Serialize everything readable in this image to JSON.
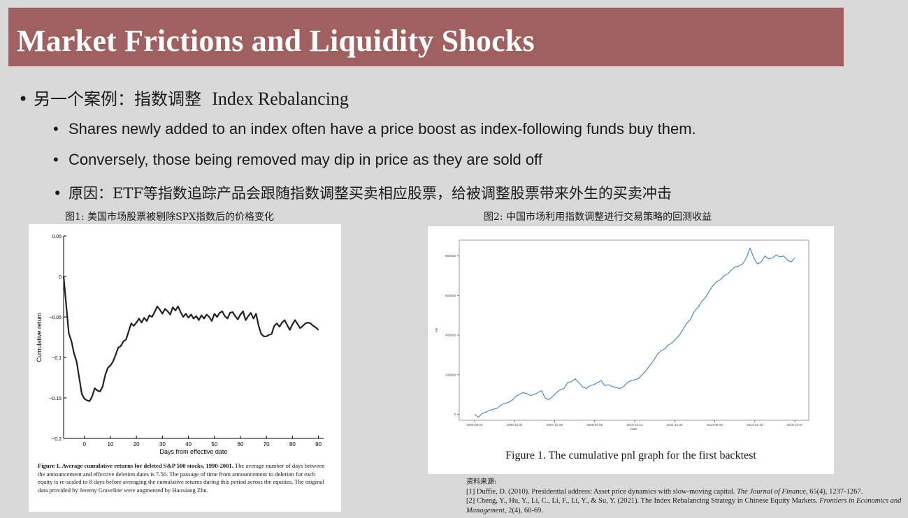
{
  "slide": {
    "title": "Market Frictions and Liquidity Shocks",
    "bullet1_cn": "另一个案例：指数调整",
    "bullet1_en": "Index Rebalancing",
    "sub1": "Shares newly added to an index often have a price boost as index-following funds buy them.",
    "sub2": "Conversely, those being removed may dip in price as they are sold off",
    "sub3": "原因：ETF等指数追踪产品会跟随指数调整买卖相应股票，给被调整股票带来外生的买卖冲击",
    "bullet_glyph": "•"
  },
  "figure1": {
    "caption": "图1: 美国市场股票被剔除SPX指数后的价格变化",
    "note_bold": "Figure 1.  Average cumulative returns for deleted S&P 500 stocks, 1990-2001.",
    "note_text": " The average number of days between the announcement and effective deletion dates is 7.56. The passage of time from announcement to deletion for each equity is re-scaled to 8 days before averaging the cumulative returns during this period across the equities. The original data provided by Jeremy Graveline were augmented by Haoxiang Zhu.",
    "chart_data": {
      "type": "line",
      "xlabel": "Days from effective date",
      "ylabel": "Cumulative return",
      "xlim": [
        -8,
        92
      ],
      "ylim": [
        -0.2,
        0.05
      ],
      "x_ticks": [
        "0",
        "10",
        "20",
        "30",
        "40",
        "50",
        "60",
        "70",
        "80",
        "90"
      ],
      "x_tick_values": [
        0,
        10,
        20,
        30,
        40,
        50,
        60,
        70,
        80,
        90
      ],
      "y_ticks": [
        "0.05",
        "0",
        "−0.05",
        "−0.1",
        "−0.15",
        "−0.2"
      ],
      "y_tick_values": [
        0.05,
        0,
        -0.05,
        -0.1,
        -0.15,
        -0.2
      ],
      "series": [
        {
          "x": [
            -8,
            -7,
            -6,
            -5,
            -4,
            -3,
            -2,
            -1,
            0,
            1,
            2,
            3,
            4,
            5,
            6,
            7,
            8,
            9,
            10,
            11,
            12,
            13,
            14,
            15,
            16,
            17,
            18,
            19,
            20,
            21,
            22,
            23,
            24,
            25,
            26,
            27,
            28,
            29,
            30,
            31,
            32,
            33,
            34,
            35,
            36,
            37,
            38,
            39,
            40,
            41,
            42,
            43,
            44,
            45,
            46,
            47,
            48,
            49,
            50,
            51,
            52,
            53,
            54,
            55,
            56,
            57,
            58,
            59,
            60,
            61,
            62,
            63,
            64,
            65,
            66,
            67,
            68,
            69,
            70,
            71,
            72,
            73,
            74,
            75,
            76,
            77,
            78,
            79,
            80,
            81,
            82,
            83,
            84,
            85,
            86,
            87,
            88,
            89,
            90
          ],
          "y": [
            0,
            -0.035,
            -0.07,
            -0.08,
            -0.095,
            -0.105,
            -0.125,
            -0.145,
            -0.151,
            -0.153,
            -0.154,
            -0.148,
            -0.138,
            -0.141,
            -0.142,
            -0.136,
            -0.122,
            -0.113,
            -0.11,
            -0.105,
            -0.097,
            -0.088,
            -0.086,
            -0.08,
            -0.078,
            -0.068,
            -0.058,
            -0.061,
            -0.057,
            -0.052,
            -0.057,
            -0.051,
            -0.055,
            -0.048,
            -0.05,
            -0.044,
            -0.037,
            -0.041,
            -0.046,
            -0.04,
            -0.043,
            -0.047,
            -0.038,
            -0.042,
            -0.037,
            -0.044,
            -0.05,
            -0.046,
            -0.051,
            -0.047,
            -0.052,
            -0.049,
            -0.054,
            -0.048,
            -0.052,
            -0.047,
            -0.05,
            -0.055,
            -0.046,
            -0.05,
            -0.045,
            -0.043,
            -0.049,
            -0.052,
            -0.045,
            -0.044,
            -0.049,
            -0.053,
            -0.047,
            -0.043,
            -0.054,
            -0.049,
            -0.045,
            -0.052,
            -0.046,
            -0.061,
            -0.071,
            -0.074,
            -0.074,
            -0.072,
            -0.071,
            -0.061,
            -0.058,
            -0.062,
            -0.057,
            -0.054,
            -0.06,
            -0.066,
            -0.059,
            -0.054,
            -0.059,
            -0.064,
            -0.061,
            -0.058,
            -0.057,
            -0.058,
            -0.061,
            -0.063,
            -0.066
          ]
        }
      ]
    }
  },
  "figure2": {
    "caption": "图2: 中国市场利用指数调整进行交易策略的回测收益",
    "bottom_caption": "Figure 1. The cumulative pnl graph for the first backtest",
    "chart_data": {
      "type": "line",
      "xlabel": "Date",
      "ylabel": "Pnl",
      "x_ticks": [
        "2005-06-22",
        "2006-12-21",
        "2007-12-28",
        "2009-01-05",
        "2010-12-13",
        "2011-12-25",
        "2013-06-20",
        "2014-12-15",
        "2016-12-07"
      ],
      "y_ticks": [
        "0",
        "200000",
        "400000",
        "600000",
        "800000"
      ],
      "y_tick_values": [
        0,
        200000,
        400000,
        600000,
        800000
      ],
      "ylim": [
        -30000,
        880000
      ],
      "color": "#3b82c4",
      "series": [
        {
          "values": [
            0,
            -15000,
            5000,
            10000,
            20000,
            25000,
            30000,
            45000,
            55000,
            60000,
            70000,
            90000,
            100000,
            110000,
            105000,
            95000,
            100000,
            110000,
            120000,
            80000,
            75000,
            90000,
            110000,
            125000,
            130000,
            160000,
            165000,
            180000,
            160000,
            140000,
            130000,
            145000,
            150000,
            160000,
            170000,
            145000,
            150000,
            140000,
            135000,
            130000,
            140000,
            160000,
            170000,
            175000,
            180000,
            200000,
            220000,
            245000,
            270000,
            300000,
            320000,
            330000,
            350000,
            360000,
            380000,
            400000,
            430000,
            460000,
            480000,
            520000,
            540000,
            570000,
            590000,
            620000,
            650000,
            670000,
            680000,
            700000,
            710000,
            730000,
            745000,
            750000,
            760000,
            790000,
            840000,
            790000,
            760000,
            770000,
            800000,
            785000,
            790000,
            805000,
            795000,
            800000,
            780000,
            770000,
            790000
          ]
        }
      ]
    }
  },
  "references": {
    "heading": "资料来源:",
    "ref1_pre": "[1] Duffie, D. (2010). Presidential address: Asset price dynamics with slow-moving capital. ",
    "ref1_journal": "The Journal of Finance",
    "ref1_post": ", 65(4), 1237-1267.",
    "ref2_pre": "[2] Cheng, Y., Hu, Y., Li, C., Li, F., Li, Y., & Su, Y. (2021). The Index Rebalancing Strategy in Chinese Equity Markets. ",
    "ref2_journal": "Frontiers in Economics and Management",
    "ref2_post": ", 2(4), 60-69."
  }
}
